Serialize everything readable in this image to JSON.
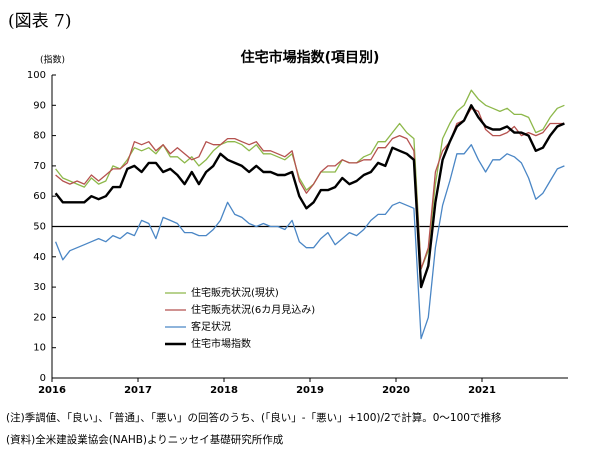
{
  "chart_data": {
    "type": "line",
    "figure_label": "(図表 7)",
    "title": "住宅市場指数(項目別)",
    "y_label": "(指数)",
    "categories": [
      "2016",
      null,
      null,
      null,
      null,
      null,
      null,
      null,
      null,
      null,
      null,
      null,
      "2017",
      null,
      null,
      null,
      null,
      null,
      null,
      null,
      null,
      null,
      null,
      null,
      "2018",
      null,
      null,
      null,
      null,
      null,
      null,
      null,
      null,
      null,
      null,
      null,
      "2019",
      null,
      null,
      null,
      null,
      null,
      null,
      null,
      null,
      null,
      null,
      null,
      "2020",
      null,
      null,
      null,
      null,
      null,
      null,
      null,
      null,
      null,
      null,
      null,
      "2021",
      null,
      null,
      null,
      null,
      null,
      null,
      null,
      null,
      null,
      null,
      null
    ],
    "series": [
      {
        "name": "住宅販売状況(現状)",
        "color": "#8db84a",
        "width": 1.3,
        "values": [
          69,
          66,
          65,
          64,
          63,
          66,
          64,
          65,
          70,
          69,
          72,
          76,
          75,
          76,
          74,
          77,
          73,
          73,
          71,
          73,
          70,
          72,
          75,
          77,
          78,
          78,
          77,
          75,
          77,
          74,
          74,
          73,
          72,
          74,
          66,
          62,
          64,
          68,
          68,
          68,
          72,
          71,
          71,
          73,
          74,
          78,
          78,
          81,
          84,
          81,
          79,
          36,
          42,
          64,
          79,
          84,
          88,
          90,
          95,
          92,
          90,
          89,
          88,
          89,
          87,
          87,
          86,
          81,
          82,
          86,
          89,
          90
        ]
      },
      {
        "name": "住宅販売状況(6カ月見込み)",
        "color": "#b5524f",
        "width": 1.3,
        "values": [
          67,
          65,
          64,
          65,
          64,
          67,
          65,
          67,
          69,
          69,
          71,
          78,
          77,
          78,
          75,
          77,
          74,
          76,
          74,
          72,
          73,
          78,
          77,
          77,
          79,
          79,
          78,
          77,
          78,
          75,
          75,
          74,
          73,
          75,
          65,
          61,
          64,
          68,
          70,
          70,
          72,
          71,
          71,
          72,
          72,
          76,
          76,
          79,
          80,
          79,
          75,
          36,
          43,
          68,
          75,
          78,
          84,
          85,
          89,
          88,
          82,
          80,
          80,
          81,
          83,
          80,
          81,
          80,
          81,
          84,
          84,
          84
        ]
      },
      {
        "name": "客足状況",
        "color": "#4a86c5",
        "width": 1.3,
        "values": [
          45,
          39,
          42,
          43,
          44,
          45,
          46,
          45,
          47,
          46,
          48,
          47,
          52,
          51,
          46,
          53,
          52,
          51,
          48,
          48,
          47,
          47,
          49,
          52,
          58,
          54,
          53,
          51,
          50,
          51,
          50,
          50,
          49,
          52,
          45,
          43,
          43,
          46,
          48,
          44,
          46,
          48,
          47,
          49,
          52,
          54,
          54,
          57,
          58,
          57,
          56,
          13,
          20,
          43,
          57,
          65,
          74,
          74,
          77,
          72,
          68,
          72,
          72,
          74,
          73,
          71,
          66,
          59,
          61,
          65,
          69,
          70
        ]
      },
      {
        "name": "住宅市場指数",
        "color": "#000000",
        "width": 2.4,
        "values": [
          61,
          58,
          58,
          58,
          58,
          60,
          59,
          60,
          63,
          63,
          69,
          70,
          68,
          71,
          71,
          68,
          69,
          67,
          64,
          68,
          64,
          68,
          70,
          74,
          72,
          71,
          70,
          68,
          70,
          68,
          68,
          67,
          67,
          68,
          60,
          56,
          58,
          62,
          62,
          63,
          66,
          64,
          65,
          67,
          68,
          71,
          70,
          76,
          75,
          74,
          72,
          30,
          37,
          58,
          72,
          78,
          83,
          85,
          90,
          86,
          83,
          82,
          82,
          83,
          81,
          81,
          80,
          75,
          76,
          80,
          83,
          84
        ]
      }
    ],
    "ylim": [
      0,
      100
    ],
    "yticks": [
      0,
      10,
      20,
      30,
      40,
      50,
      60,
      70,
      80,
      90,
      100
    ],
    "reference_line": 50,
    "notes": [
      "(注)季調値、「良い」、「普通」、「悪い」の回答のうち、(「良い」-「悪い」+100)/2で計算。0～100で推移",
      "(資料)全米建設業協会(NAHB)よりニッセイ基礎研究所作成"
    ]
  }
}
